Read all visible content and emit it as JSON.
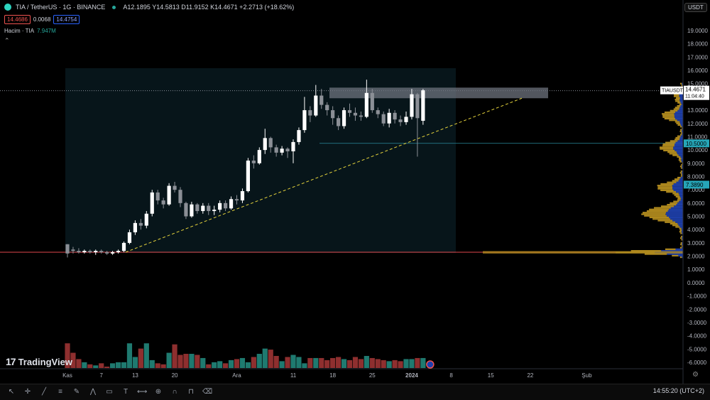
{
  "header": {
    "symbol": "TIA / TetherUS · 1G · BINANCE",
    "ohlc": "A12.1895 Y14.5813 D11.9152 K14.4671 +2.2713 (+18.62%)",
    "sell_price": "14.4686",
    "spread": "0.0068",
    "buy_price": "14.4754",
    "volume_label": "Hacim · TIA",
    "volume_value": "7.947M"
  },
  "currency": "USDT",
  "brand": "TradingView",
  "clock": "14:55:20 (UTC+2)",
  "icons": [
    "cursor-icon",
    "crosshair-icon",
    "trendline-icon",
    "fib-icon",
    "brush-icon",
    "text-icon",
    "pattern-icon",
    "ruler-icon",
    "zoom-icon",
    "magnet-icon",
    "lock-icon",
    "trash-icon"
  ],
  "chart_data": {
    "type": "candlestick",
    "yticks": [
      "19.0000",
      "18.0000",
      "17.0000",
      "16.0000",
      "15.0000",
      "14.0000",
      "13.0000",
      "12.0000",
      "11.0000",
      "10.0000",
      "9.0000",
      "8.0000",
      "7.0000",
      "6.0000",
      "5.0000",
      "4.0000",
      "3.0000",
      "2.0000",
      "1.0000",
      "0.0000",
      "-1.0000",
      "-2.0000",
      "-3.0000",
      "-4.0000",
      "-5.0000",
      "-6.0000"
    ],
    "ylim": [
      -6.5,
      19.6
    ],
    "xticks": [
      {
        "label": "Kas",
        "day": 0
      },
      {
        "label": "7",
        "day": 6
      },
      {
        "label": "13",
        "day": 12
      },
      {
        "label": "20",
        "day": 19
      },
      {
        "label": "Ara",
        "day": 30
      },
      {
        "label": "11",
        "day": 40
      },
      {
        "label": "18",
        "day": 47
      },
      {
        "label": "25",
        "day": 54
      },
      {
        "label": "2024",
        "day": 61
      },
      {
        "label": "8",
        "day": 68
      },
      {
        "label": "15",
        "day": 75
      },
      {
        "label": "22",
        "day": 82
      },
      {
        "label": "Şub",
        "day": 92
      }
    ],
    "current_price_label": "TIAUSDT",
    "current_price": "14.4671",
    "countdown": "11:04:40",
    "level_labels": [
      {
        "text": "10.5000",
        "value": 10.5
      },
      {
        "text": "7.3890",
        "value": 7.389
      }
    ],
    "support_level": 2.3,
    "candles": [
      [
        2.9,
        2.2,
        2.9,
        1.9
      ],
      [
        2.5,
        2.4,
        2.7,
        2.2
      ],
      [
        2.4,
        2.3,
        2.6,
        2.2
      ],
      [
        2.3,
        2.4,
        2.5,
        2.2
      ],
      [
        2.4,
        2.3,
        2.5,
        2.2
      ],
      [
        2.3,
        2.4,
        2.5,
        2.1
      ],
      [
        2.4,
        2.3,
        2.5,
        2.2
      ],
      [
        2.3,
        2.2,
        2.4,
        2.1
      ],
      [
        2.2,
        2.3,
        2.4,
        2.1
      ],
      [
        2.3,
        2.4,
        2.5,
        2.2
      ],
      [
        2.4,
        3.0,
        3.1,
        2.3
      ],
      [
        3.0,
        3.8,
        4.0,
        2.9
      ],
      [
        3.8,
        4.5,
        4.7,
        3.6
      ],
      [
        4.5,
        4.3,
        4.8,
        4.0
      ],
      [
        4.3,
        5.2,
        5.4,
        4.1
      ],
      [
        5.2,
        6.8,
        7.0,
        5.0
      ],
      [
        6.8,
        6.2,
        7.0,
        5.9
      ],
      [
        6.2,
        5.9,
        6.4,
        5.6
      ],
      [
        5.9,
        7.3,
        7.5,
        5.8
      ],
      [
        7.3,
        7.0,
        7.6,
        6.8
      ],
      [
        7.0,
        6.0,
        7.2,
        5.7
      ],
      [
        6.0,
        5.0,
        6.1,
        4.8
      ],
      [
        5.0,
        5.9,
        6.1,
        4.9
      ],
      [
        5.9,
        5.4,
        6.0,
        5.2
      ],
      [
        5.4,
        5.8,
        6.0,
        5.2
      ],
      [
        5.8,
        5.4,
        6.0,
        5.1
      ],
      [
        5.4,
        5.5,
        5.8,
        5.1
      ],
      [
        5.5,
        6.0,
        6.2,
        5.3
      ],
      [
        6.0,
        5.6,
        6.2,
        5.4
      ],
      [
        5.6,
        6.3,
        6.5,
        5.5
      ],
      [
        6.3,
        6.2,
        6.6,
        5.9
      ],
      [
        6.2,
        6.9,
        7.1,
        6.0
      ],
      [
        6.9,
        9.2,
        9.4,
        6.8
      ],
      [
        9.2,
        9.0,
        9.6,
        8.6
      ],
      [
        9.0,
        10.0,
        10.2,
        8.9
      ],
      [
        10.0,
        10.9,
        11.6,
        9.7
      ],
      [
        10.9,
        10.2,
        11.0,
        9.8
      ],
      [
        10.2,
        9.8,
        10.4,
        9.5
      ],
      [
        9.8,
        10.1,
        10.3,
        9.6
      ],
      [
        10.1,
        9.9,
        10.2,
        9.4
      ],
      [
        9.9,
        10.6,
        10.8,
        9.0
      ],
      [
        10.6,
        11.5,
        11.7,
        10.4
      ],
      [
        11.5,
        13.0,
        14.0,
        11.3
      ],
      [
        13.0,
        12.6,
        13.3,
        12.1
      ],
      [
        12.6,
        14.1,
        14.9,
        12.5
      ],
      [
        14.1,
        13.4,
        14.6,
        13.1
      ],
      [
        13.4,
        13.0,
        13.6,
        12.6
      ],
      [
        13.0,
        12.4,
        13.3,
        11.9
      ],
      [
        12.4,
        11.8,
        12.6,
        11.5
      ],
      [
        11.8,
        13.0,
        13.2,
        11.6
      ],
      [
        13.0,
        12.8,
        13.5,
        12.5
      ],
      [
        12.8,
        12.6,
        13.2,
        12.2
      ],
      [
        12.6,
        12.5,
        12.9,
        12.2
      ],
      [
        12.5,
        14.3,
        15.3,
        12.4
      ],
      [
        14.3,
        13.0,
        14.6,
        12.8
      ],
      [
        13.0,
        12.7,
        13.2,
        12.4
      ],
      [
        12.7,
        12.0,
        12.9,
        11.8
      ],
      [
        12.0,
        12.8,
        13.1,
        11.7
      ],
      [
        12.8,
        12.3,
        13.0,
        12.0
      ],
      [
        12.3,
        12.1,
        12.6,
        11.8
      ],
      [
        12.1,
        12.5,
        12.9,
        11.9
      ],
      [
        12.5,
        14.2,
        14.6,
        12.3
      ],
      [
        14.2,
        12.4,
        14.3,
        9.5
      ],
      [
        12.2,
        14.5,
        14.6,
        11.9
      ]
    ],
    "volume": [
      2.0,
      1.1,
      0.5,
      0.2,
      0.0,
      -0.1,
      0.1,
      -0.3,
      0.1,
      0.2,
      0.2,
      2.0,
      0.7,
      1.5,
      2.0,
      0.4,
      0.1,
      0.0,
      1.1,
      1.9,
      0.9,
      1.0,
      1.0,
      0.9,
      0.6,
      0.0,
      0.2,
      0.3,
      0.1,
      0.4,
      0.5,
      0.6,
      0.2,
      0.7,
      1.0,
      1.5,
      1.4,
      0.8,
      0.3,
      0.7,
      0.9,
      0.7,
      0.1,
      0.6,
      0.6,
      0.6,
      0.4,
      0.6,
      0.7,
      0.5,
      0.4,
      0.7,
      0.5,
      0.8,
      0.6,
      0.5,
      0.4,
      0.3,
      0.4,
      0.3,
      0.5,
      0.5,
      0.6,
      0.6
    ]
  }
}
